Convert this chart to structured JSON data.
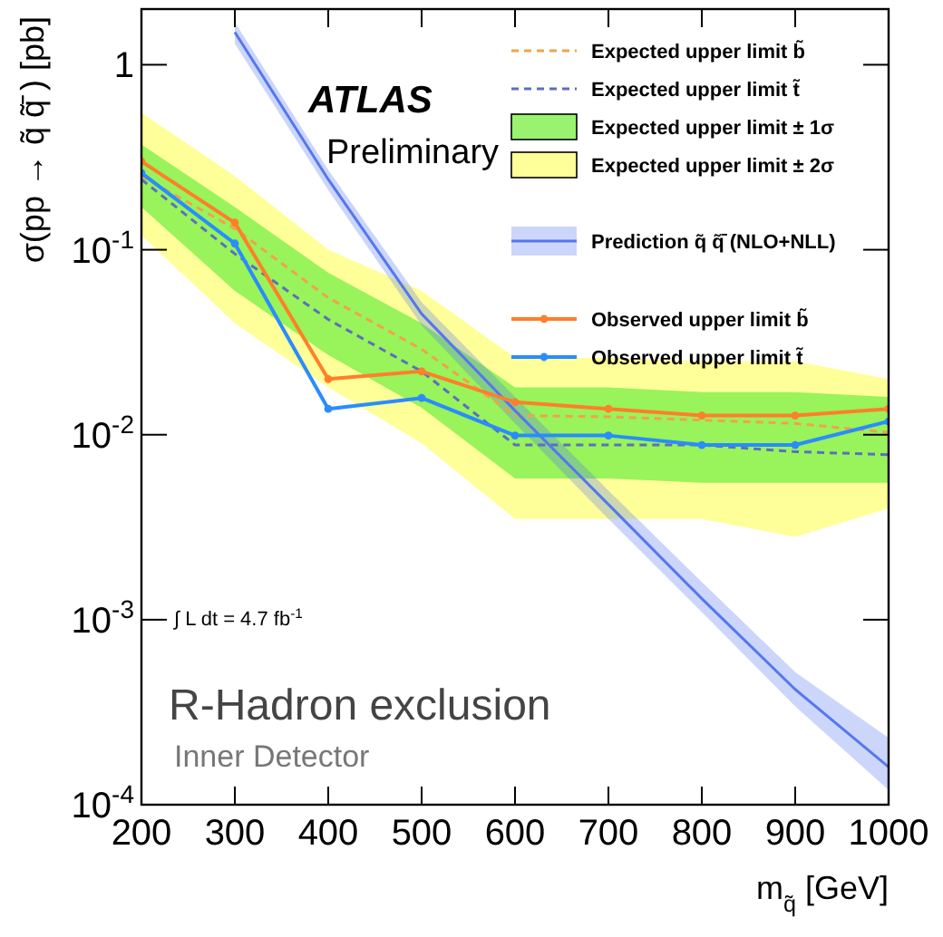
{
  "chart_data": {
    "type": "line",
    "xlabel": "m$_{q̃}$ [GeV]",
    "ylabel": "σ(pp → q̃ q̃̄ ) [pb]",
    "x": [
      200,
      300,
      400,
      500,
      600,
      700,
      800,
      900,
      1000
    ],
    "xlim": [
      200,
      1000
    ],
    "xticks": [
      200,
      300,
      400,
      500,
      600,
      700,
      800,
      900,
      1000
    ],
    "ylim": [
      0.0001,
      2
    ],
    "yticks": [
      {
        "value": 0.0001,
        "label": "10$^{-4}$"
      },
      {
        "value": 0.001,
        "label": "10$^{-3}$"
      },
      {
        "value": 0.01,
        "label": "10$^{-2}$"
      },
      {
        "value": 0.1,
        "label": "10$^{-1}$"
      },
      1
    ],
    "log": "y",
    "legend": "top right",
    "grid": false,
    "series": [
      {
        "name": "Expected upper limit b̃",
        "color": "#f2a24a",
        "line_style": "dashed",
        "marker": "none",
        "values": [
          0.25,
          0.13,
          0.055,
          0.029,
          0.0127,
          0.0125,
          0.012,
          0.0115,
          0.0103
        ]
      },
      {
        "name": "Expected upper limit t̃",
        "color": "#5a6fc0",
        "line_style": "dashed",
        "marker": "none",
        "values": [
          0.24,
          0.095,
          0.042,
          0.022,
          0.0088,
          0.0088,
          0.0088,
          0.0081,
          0.0078
        ]
      },
      {
        "name": "Expected upper limit ± 1σ",
        "color": "#80f04a",
        "values": [
          null,
          null,
          null,
          null,
          null,
          null,
          null,
          null,
          null
        ],
        "lower": [
          0.17,
          0.06,
          0.027,
          0.014,
          0.0058,
          0.0058,
          0.0055,
          0.0055,
          0.0055
        ],
        "upper": [
          0.37,
          0.17,
          0.075,
          0.04,
          0.018,
          0.018,
          0.017,
          0.017,
          0.016
        ]
      },
      {
        "name": "Expected upper limit ± 2σ",
        "color": "#ffff80",
        "values": [
          null,
          null,
          null,
          null,
          null,
          null,
          null,
          null,
          null
        ],
        "lower": [
          0.12,
          0.04,
          0.018,
          0.009,
          0.0035,
          0.0035,
          0.0035,
          0.0028,
          0.004
        ],
        "upper": [
          0.55,
          0.25,
          0.1,
          0.06,
          0.026,
          0.026,
          0.025,
          0.025,
          0.02
        ]
      },
      {
        "name": "Prediction q̃ q̃̄ (NLO+NLL)",
        "color": "#5577ee",
        "line_style": "solid",
        "marker": "none",
        "x": [
          300,
          400,
          500,
          600,
          700,
          800,
          900,
          1000
        ],
        "values": [
          1.5,
          0.24,
          0.045,
          0.0135,
          0.0042,
          0.0013,
          0.00042,
          0.00016
        ],
        "lower": [
          1.3,
          0.21,
          0.039,
          0.0115,
          0.0035,
          0.0011,
          0.00034,
          0.00012
        ],
        "upper": [
          1.7,
          0.27,
          0.052,
          0.016,
          0.005,
          0.0016,
          0.00052,
          0.00023
        ]
      },
      {
        "name": "Observed upper limit b̃",
        "color": "#ff7f2a",
        "line_style": "solid",
        "marker": "circle",
        "values": [
          0.3,
          0.14,
          0.02,
          0.022,
          0.015,
          0.0138,
          0.0127,
          0.0127,
          0.0138
        ]
      },
      {
        "name": "Observed upper limit t̃",
        "color": "#2a8cff",
        "line_style": "solid",
        "marker": "circle",
        "values": [
          0.26,
          0.108,
          0.0138,
          0.0158,
          0.0099,
          0.0099,
          0.0088,
          0.0088,
          0.0118
        ]
      }
    ],
    "annotations": [
      "ATLAS",
      "Preliminary",
      "∫ L dt = 4.7 fb$^{-1}$",
      "R-Hadron exclusion",
      "Inner Detector"
    ]
  }
}
